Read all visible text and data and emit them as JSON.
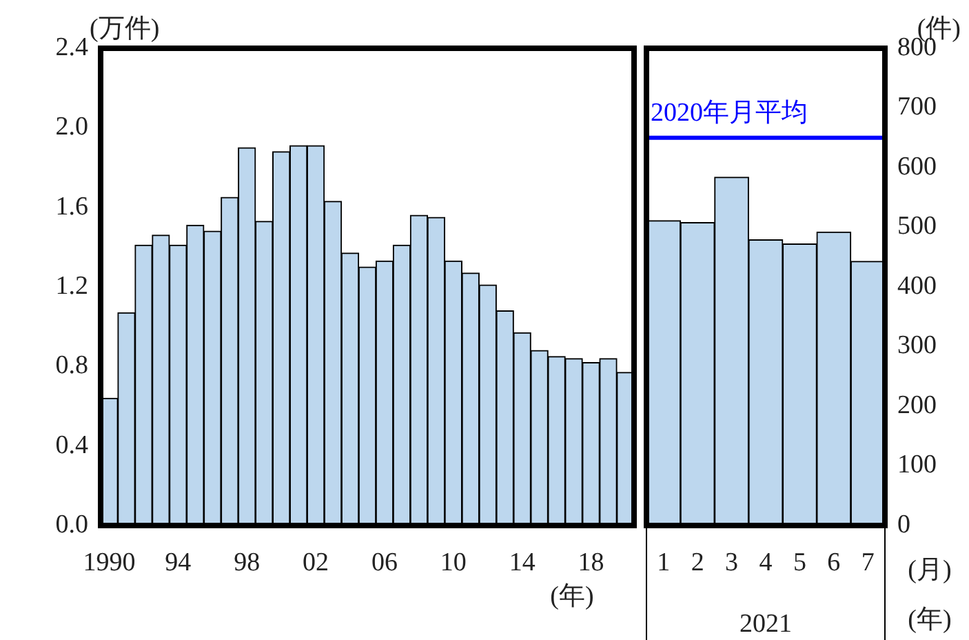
{
  "chart_data": [
    {
      "type": "bar",
      "ylabel": "(万件)",
      "xlabel": "(年)",
      "categories": [
        "1990",
        null,
        null,
        null,
        "94",
        null,
        null,
        null,
        "98",
        null,
        null,
        null,
        "02",
        null,
        null,
        null,
        "06",
        null,
        null,
        null,
        "10",
        null,
        null,
        null,
        "14",
        null,
        null,
        null,
        "18",
        null,
        null
      ],
      "series": [
        {
          "color": "#bdd7ee",
          "values": [
            0.64,
            1.07,
            1.41,
            1.46,
            1.41,
            1.51,
            1.48,
            1.65,
            1.9,
            1.53,
            1.88,
            1.91,
            1.91,
            1.63,
            1.37,
            1.3,
            1.33,
            1.41,
            1.56,
            1.55,
            1.33,
            1.27,
            1.21,
            1.08,
            0.97,
            0.88,
            0.85,
            0.84,
            0.82,
            0.84,
            0.77
          ]
        }
      ],
      "ylim": [
        0,
        2.4
      ],
      "yticks": [
        {
          "value": 0,
          "label": "0.0"
        },
        0.4,
        0.8,
        1.2,
        1.6,
        {
          "value": 2,
          "label": "2.0"
        },
        2.4
      ],
      "grid": false
    },
    {
      "type": "bar",
      "y2label": "(件)",
      "xlabel": "2021",
      "categories": [
        "1",
        "2",
        "3",
        "4",
        "5",
        "6",
        "7"
      ],
      "series": [
        {
          "color": "#bdd7ee",
          "axis": "y2",
          "values": [
            511,
            508,
            584,
            479,
            472,
            492,
            443
          ]
        }
      ],
      "y2lim": [
        0,
        800
      ],
      "y2ticks": [
        0,
        100,
        200,
        300,
        400,
        500,
        600,
        700,
        800
      ],
      "grid": false,
      "ref_lines": [
        {
          "axis": "y2",
          "value": 650,
          "label": "2020年月平均",
          "color": "#0000ff"
        }
      ],
      "annotations": [
        "(月)",
        "(年)"
      ]
    }
  ]
}
